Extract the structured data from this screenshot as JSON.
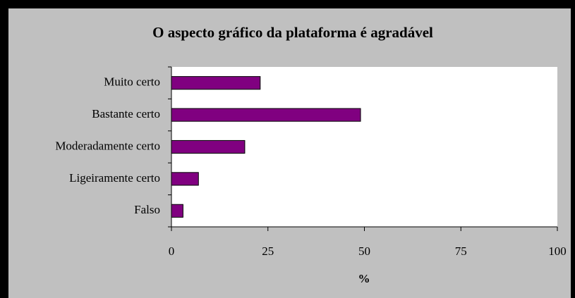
{
  "chart_data": {
    "type": "barh",
    "title": "O aspecto gráfico da plataforma é agradável",
    "categories": [
      "Muito certo",
      "Bastante certo",
      "Moderadamente certo",
      "Ligeiramente certo",
      "Falso"
    ],
    "values": [
      23,
      49,
      19,
      7,
      3
    ],
    "color": "#800080",
    "xlabel": "%",
    "xlim": [
      0,
      100
    ],
    "xticks": [
      0,
      25,
      50,
      75,
      100
    ],
    "grid": false
  }
}
